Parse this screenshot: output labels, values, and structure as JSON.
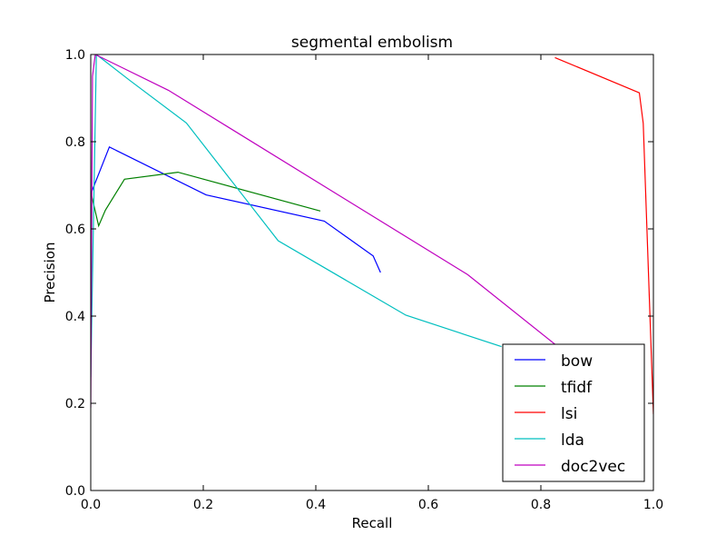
{
  "chart_data": {
    "type": "line",
    "title": "segmental embolism",
    "xlabel": "Recall",
    "ylabel": "Precision",
    "xlim": [
      0.0,
      1.0
    ],
    "ylim": [
      0.0,
      1.0
    ],
    "xticks": [
      "0.0",
      "0.2",
      "0.4",
      "0.6",
      "0.8",
      "1.0"
    ],
    "yticks": [
      "0.0",
      "0.2",
      "0.4",
      "0.6",
      "0.8",
      "1.0"
    ],
    "grid": false,
    "legend_position": "bottom-right",
    "series": [
      {
        "name": "bow",
        "color": "#0000ff",
        "x": [
          0.0,
          0.033,
          0.205,
          0.415,
          0.502,
          0.515
        ],
        "y": [
          0.68,
          0.788,
          0.678,
          0.618,
          0.538,
          0.5
        ]
      },
      {
        "name": "tfidf",
        "color": "#008000",
        "x": [
          0.0,
          0.014,
          0.026,
          0.06,
          0.155,
          0.408
        ],
        "y": [
          0.685,
          0.607,
          0.643,
          0.714,
          0.73,
          0.641
        ]
      },
      {
        "name": "lsi",
        "color": "#ff0000",
        "x": [
          0.825,
          0.975,
          0.982,
          1.0
        ],
        "y": [
          0.993,
          0.912,
          0.842,
          0.175
        ]
      },
      {
        "name": "lda",
        "color": "#00bfbf",
        "x": [
          0.0,
          0.01,
          0.07,
          0.17,
          0.333,
          0.56,
          0.73
        ],
        "y": [
          0.26,
          1.0,
          0.94,
          0.843,
          0.573,
          0.402,
          0.33
        ]
      },
      {
        "name": "doc2vec",
        "color": "#bf00bf",
        "x": [
          0.0,
          0.003,
          0.008,
          0.138,
          0.67,
          0.84
        ],
        "y": [
          0.19,
          0.95,
          1.0,
          0.918,
          0.495,
          0.32
        ]
      }
    ]
  }
}
